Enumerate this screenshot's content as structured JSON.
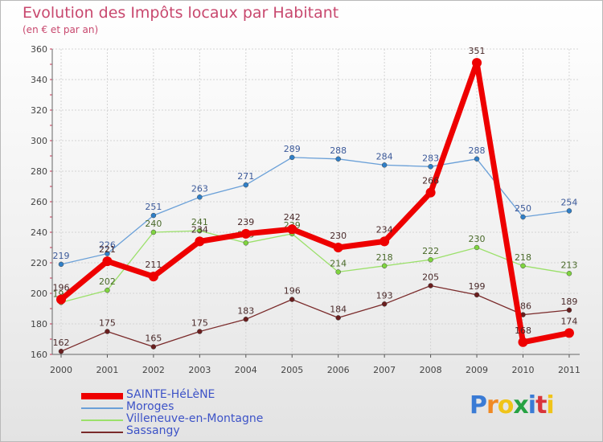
{
  "title": "Evolution des Impôts locaux par Habitant",
  "subtitle": "(en € et par an)",
  "logo": {
    "letters": [
      "P",
      "r",
      "o",
      "x",
      "i",
      "t",
      "i"
    ],
    "colors": [
      "#3a7bd5",
      "#f08a24",
      "#f0c419",
      "#27a243",
      "#3a7bd5",
      "#d9343a",
      "#f0c419"
    ]
  },
  "chart_data": {
    "type": "line",
    "x": [
      "2000",
      "2001",
      "2002",
      "2003",
      "2004",
      "2005",
      "2006",
      "2007",
      "2008",
      "2009",
      "2010",
      "2011"
    ],
    "ylim": [
      160,
      360
    ],
    "yticks": [
      160,
      180,
      200,
      220,
      240,
      260,
      280,
      300,
      320,
      340,
      360
    ],
    "grid": true,
    "legend_position": "bottom-left",
    "series": [
      {
        "name": "Moroges",
        "color": "#6aa0d8",
        "point_color": "#2f7fc8",
        "label_color": "#3c5a9a",
        "values": [
          219,
          226,
          251,
          263,
          271,
          289,
          288,
          284,
          283,
          288,
          250,
          254
        ]
      },
      {
        "name": "Villeneuve-en-Montagne",
        "color": "#9be06a",
        "point_color": "#7fd43f",
        "label_color": "#4a6a2a",
        "values": [
          194,
          202,
          240,
          241,
          233,
          239,
          214,
          218,
          222,
          230,
          218,
          213
        ]
      },
      {
        "name": "Sassangy",
        "color": "#7a2a2a",
        "point_color": "#6a1e1e",
        "label_color": "#4a2a2a",
        "values": [
          162,
          175,
          165,
          175,
          183,
          196,
          184,
          193,
          205,
          199,
          186,
          189
        ]
      },
      {
        "name": "SAINTE-HéLèNE",
        "color": "#ee0000",
        "point_color": "#ee0000",
        "label_color": "#4a2a2a",
        "values": [
          196,
          221,
          211,
          234,
          239,
          242,
          230,
          234,
          266,
          351,
          168,
          174
        ]
      }
    ],
    "legend_order": [
      "SAINTE-HéLèNE",
      "Moroges",
      "Villeneuve-en-Montagne",
      "Sassangy"
    ]
  }
}
